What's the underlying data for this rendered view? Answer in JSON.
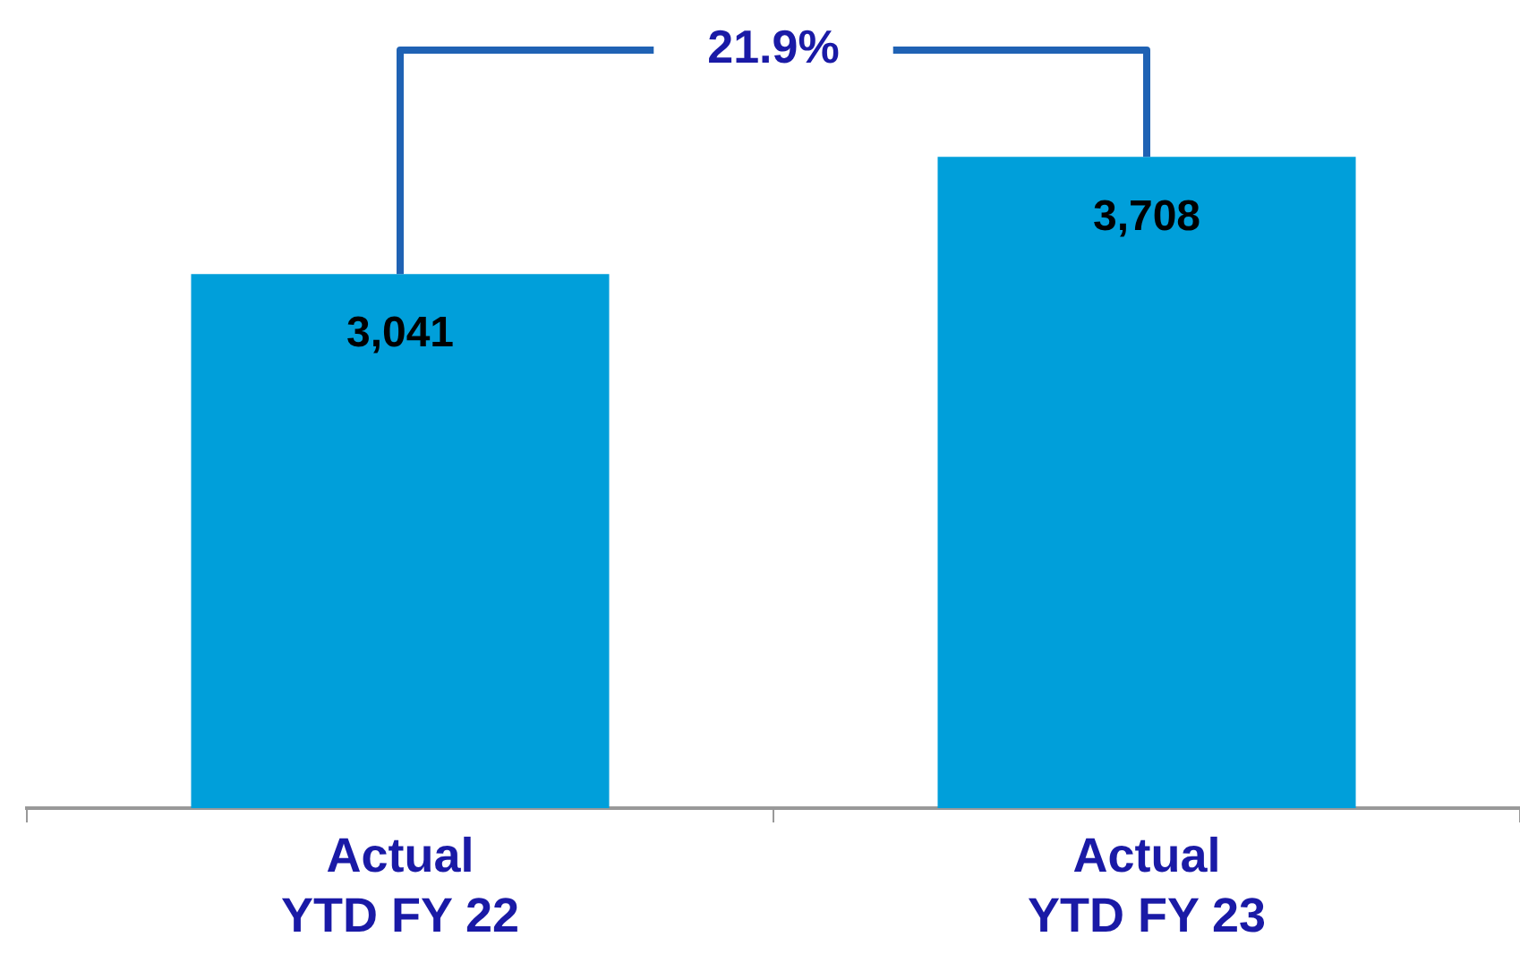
{
  "chart_data": {
    "type": "bar",
    "categories": [
      "Actual\nYTD FY 22",
      "Actual\nYTD FY 23"
    ],
    "values": [
      3041,
      3708
    ],
    "color": "#009fda",
    "data_labels": true,
    "value_labels": [
      "3,041",
      "3,708"
    ],
    "tick_labels": "x",
    "grid": false,
    "legend": false,
    "annotations": [
      "21.9%"
    ]
  }
}
